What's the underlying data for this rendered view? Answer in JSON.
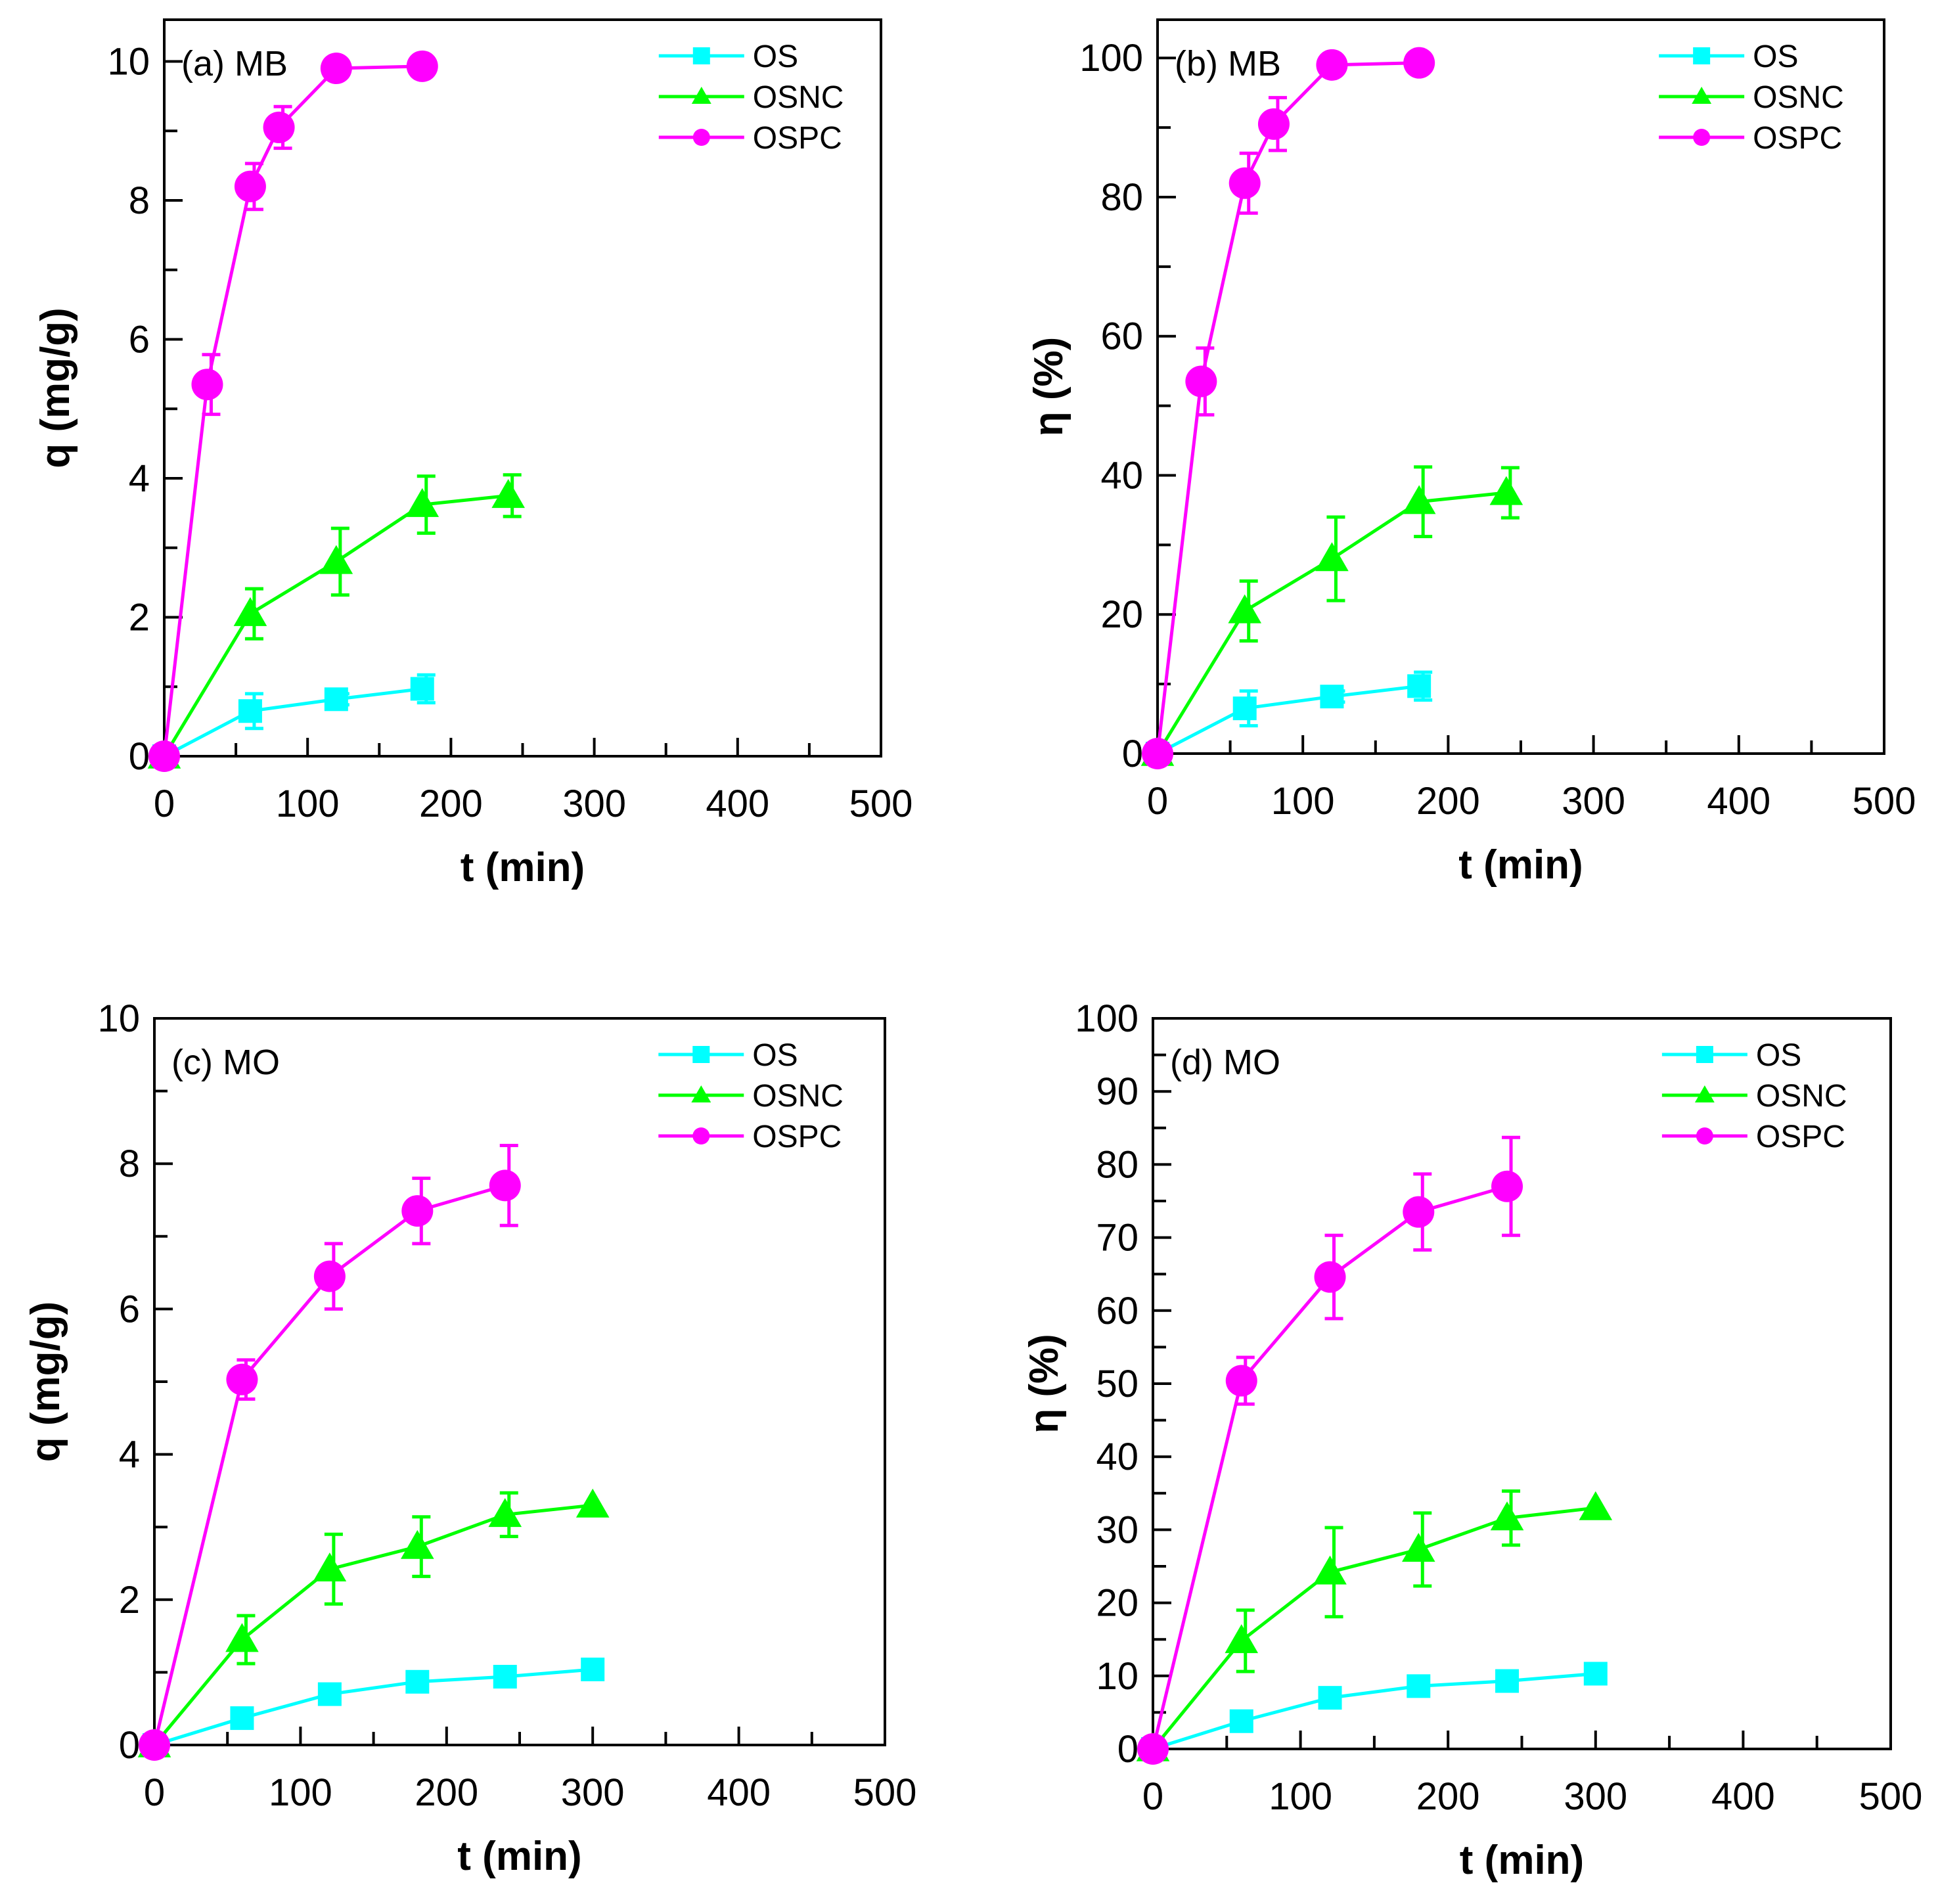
{
  "colors": {
    "OS": "#00FFFF",
    "OSNC": "#00FF00",
    "OSPC": "#FF00FF"
  },
  "chart_data": [
    {
      "type": "line",
      "panel_label": "(a) MB",
      "xlabel": "t (min)",
      "ylabel": "q (mg/g)",
      "xlim": [
        0,
        500
      ],
      "ylim": [
        0,
        10.6
      ],
      "xticks": [
        0,
        100,
        200,
        300,
        400,
        500
      ],
      "yticks": [
        0,
        2,
        4,
        6,
        8,
        10
      ],
      "xminor": 50,
      "yminor": 1,
      "legend": "top-right",
      "series": [
        {
          "name": "OS",
          "marker": "square",
          "x": [
            0,
            60,
            120,
            180
          ],
          "y": [
            0,
            0.65,
            0.82,
            0.97
          ],
          "err": [
            0,
            0.25,
            0.08,
            0.2
          ]
        },
        {
          "name": "OSNC",
          "marker": "triangle",
          "x": [
            0,
            60,
            120,
            180,
            240
          ],
          "y": [
            0,
            2.05,
            2.8,
            3.62,
            3.75
          ],
          "err": [
            0,
            0.36,
            0.48,
            0.41,
            0.3
          ]
        },
        {
          "name": "OSPC",
          "marker": "circle",
          "x": [
            0,
            30,
            60,
            80,
            120,
            180
          ],
          "y": [
            0,
            5.35,
            8.2,
            9.05,
            9.9,
            9.93
          ],
          "err": [
            0,
            0.43,
            0.33,
            0.3,
            0,
            0
          ]
        }
      ]
    },
    {
      "type": "line",
      "panel_label": "(b) MB",
      "xlabel": "t (min)",
      "ylabel": "η (%)",
      "xlim": [
        0,
        500
      ],
      "ylim": [
        0,
        105.5
      ],
      "xticks": [
        0,
        100,
        200,
        300,
        400,
        500
      ],
      "yticks": [
        0,
        20,
        40,
        60,
        80,
        100
      ],
      "xminor": 50,
      "yminor": 10,
      "legend": "top-right",
      "series": [
        {
          "name": "OS",
          "marker": "square",
          "x": [
            0,
            60,
            120,
            180
          ],
          "y": [
            0,
            6.5,
            8.2,
            9.7
          ],
          "err": [
            0,
            2.5,
            0.8,
            2.0
          ]
        },
        {
          "name": "OSNC",
          "marker": "triangle",
          "x": [
            0,
            60,
            120,
            180,
            240
          ],
          "y": [
            0,
            20.5,
            28,
            36.2,
            37.5
          ],
          "err": [
            0,
            4.3,
            6,
            5,
            3.6
          ]
        },
        {
          "name": "OSPC",
          "marker": "circle",
          "x": [
            0,
            30,
            60,
            80,
            120,
            180
          ],
          "y": [
            0,
            53.5,
            82,
            90.5,
            99,
            99.3
          ],
          "err": [
            0,
            4.8,
            4.3,
            3.8,
            0,
            0
          ]
        }
      ]
    },
    {
      "type": "line",
      "panel_label": "(c) MO",
      "xlabel": "t (min)",
      "ylabel": "q (mg/g)",
      "xlim": [
        0,
        500
      ],
      "ylim": [
        0,
        10
      ],
      "xticks": [
        0,
        100,
        200,
        300,
        400,
        500
      ],
      "yticks": [
        0,
        2,
        4,
        6,
        8,
        10
      ],
      "xminor": 50,
      "yminor": 1,
      "legend": "top-right",
      "series": [
        {
          "name": "OS",
          "marker": "square",
          "x": [
            0,
            60,
            120,
            180,
            240,
            300
          ],
          "y": [
            0,
            0.37,
            0.7,
            0.87,
            0.94,
            1.04
          ],
          "err": [
            0,
            0,
            0,
            0,
            0,
            0
          ]
        },
        {
          "name": "OSNC",
          "marker": "triangle",
          "x": [
            0,
            60,
            120,
            180,
            240,
            300
          ],
          "y": [
            0,
            1.45,
            2.42,
            2.73,
            3.17,
            3.3
          ],
          "err": [
            0,
            0.33,
            0.48,
            0.41,
            0.3,
            0
          ]
        },
        {
          "name": "OSPC",
          "marker": "circle",
          "x": [
            0,
            60,
            120,
            180,
            240
          ],
          "y": [
            0,
            5.03,
            6.45,
            7.35,
            7.7
          ],
          "err": [
            0,
            0.27,
            0.45,
            0.45,
            0.55
          ]
        }
      ]
    },
    {
      "type": "line",
      "panel_label": "(d) MO",
      "xlabel": "t (min)",
      "ylabel": "η (%)",
      "xlim": [
        0,
        500
      ],
      "ylim": [
        0,
        100
      ],
      "xticks": [
        0,
        100,
        200,
        300,
        400,
        500
      ],
      "yticks": [
        0,
        10,
        20,
        30,
        40,
        50,
        60,
        70,
        80,
        90,
        100
      ],
      "xminor": 50,
      "yminor": 5,
      "legend": "top-right",
      "series": [
        {
          "name": "OS",
          "marker": "square",
          "x": [
            0,
            60,
            120,
            180,
            240,
            300
          ],
          "y": [
            0,
            3.8,
            7,
            8.6,
            9.3,
            10.3
          ],
          "err": [
            0,
            0,
            0,
            0,
            0,
            0
          ]
        },
        {
          "name": "OSNC",
          "marker": "triangle",
          "x": [
            0,
            60,
            120,
            180,
            240,
            300
          ],
          "y": [
            0,
            14.8,
            24.2,
            27.3,
            31.6,
            33
          ],
          "err": [
            0,
            4.2,
            6.1,
            5,
            3.7,
            0
          ]
        },
        {
          "name": "OSPC",
          "marker": "circle",
          "x": [
            0,
            60,
            120,
            180,
            240
          ],
          "y": [
            0,
            50.4,
            64.6,
            73.5,
            77
          ],
          "err": [
            0,
            3.2,
            5.7,
            5.2,
            6.7
          ]
        }
      ]
    }
  ]
}
